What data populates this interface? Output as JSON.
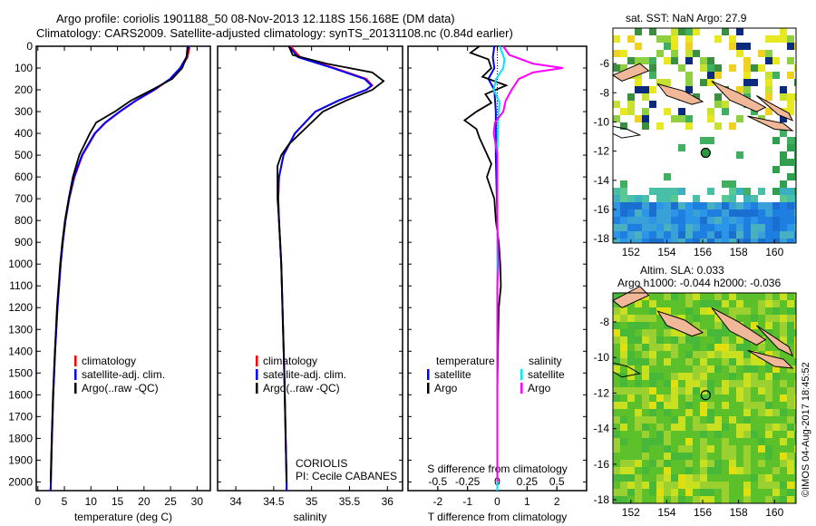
{
  "title_line1": "Argo profile: coriolis 1901188_50 08-Nov-2013 12.118S 156.168E (DM data)",
  "title_line2": "Climatology: CARS2009. Satellite-adjusted climatology: synTS_20131108.nc (0.84d earlier)",
  "colors": {
    "clim": "#ff0000",
    "sat": "#0000ff",
    "argo": "#000000",
    "sat_s": "#00e5ff",
    "argo_s": "#ff00ff"
  },
  "chart_data": [
    {
      "type": "line",
      "name": "temperature",
      "xlabel": "temperature (deg C)",
      "ylabel": "depth",
      "xlim": [
        -0.3,
        32.5
      ],
      "ylim": [
        2040,
        0
      ],
      "xticks": [
        0,
        5,
        10,
        15,
        20,
        25,
        30
      ],
      "yticks": [
        0,
        100,
        200,
        300,
        400,
        500,
        600,
        700,
        800,
        900,
        1000,
        1100,
        1200,
        1300,
        1400,
        1500,
        1600,
        1700,
        1800,
        1900,
        2000
      ],
      "legend": [
        "climatology",
        "satellite-adj. clim.",
        "Argo(..raw -QC)"
      ],
      "series": [
        {
          "name": "climatology",
          "color": "clim",
          "points": [
            [
              0,
              28.6
            ],
            [
              50,
              28.2
            ],
            [
              100,
              27.0
            ],
            [
              150,
              25.0
            ],
            [
              200,
              22.0
            ],
            [
              250,
              18.5
            ],
            [
              300,
              15.5
            ],
            [
              350,
              12.8
            ],
            [
              400,
              10.8
            ],
            [
              500,
              8.4
            ],
            [
              600,
              6.9
            ],
            [
              700,
              5.9
            ],
            [
              800,
              5.2
            ],
            [
              900,
              4.7
            ],
            [
              1000,
              4.3
            ],
            [
              1200,
              3.7
            ],
            [
              1400,
              3.25
            ],
            [
              1600,
              2.9
            ],
            [
              1800,
              2.65
            ],
            [
              2000,
              2.45
            ],
            [
              2040,
              2.4
            ]
          ]
        },
        {
          "name": "satellite-adj. clim.",
          "color": "sat",
          "points": [
            [
              0,
              28.4
            ],
            [
              50,
              28.0
            ],
            [
              100,
              26.8
            ],
            [
              150,
              24.9
            ],
            [
              200,
              21.9
            ],
            [
              250,
              18.4
            ],
            [
              300,
              15.4
            ],
            [
              350,
              12.7
            ],
            [
              400,
              10.7
            ],
            [
              500,
              8.3
            ],
            [
              600,
              6.8
            ],
            [
              700,
              5.9
            ],
            [
              800,
              5.2
            ],
            [
              900,
              4.7
            ],
            [
              1000,
              4.3
            ],
            [
              1200,
              3.7
            ],
            [
              1400,
              3.25
            ],
            [
              1600,
              2.9
            ],
            [
              1800,
              2.65
            ],
            [
              2000,
              2.45
            ],
            [
              2040,
              2.4
            ]
          ]
        },
        {
          "name": "Argo(..raw -QC)",
          "color": "argo",
          "points": [
            [
              0,
              28.2
            ],
            [
              50,
              28.0
            ],
            [
              100,
              27.2
            ],
            [
              150,
              25.3
            ],
            [
              200,
              21.5
            ],
            [
              250,
              17.5
            ],
            [
              300,
              14.5
            ],
            [
              350,
              11.0
            ],
            [
              400,
              9.8
            ],
            [
              500,
              7.8
            ],
            [
              600,
              6.6
            ],
            [
              700,
              5.8
            ],
            [
              800,
              5.1
            ],
            [
              900,
              4.6
            ],
            [
              1000,
              4.2
            ],
            [
              1200,
              3.6
            ],
            [
              1400,
              3.2
            ],
            [
              1600,
              2.85
            ],
            [
              1800,
              2.6
            ],
            [
              2000,
              2.4
            ]
          ]
        }
      ]
    },
    {
      "type": "line",
      "name": "salinity",
      "xlabel": "salinity",
      "ylabel": "depth",
      "xlim": [
        33.76,
        36.2
      ],
      "ylim": [
        2040,
        0
      ],
      "xticks": [
        34,
        34.5,
        35,
        35.5,
        36
      ],
      "legend": [
        "climatology",
        "satellite-adj. clim.",
        "Argo(..raw -QC)"
      ],
      "annotation": [
        "CORIOLIS",
        "PI: Cecile CABANES"
      ],
      "series": [
        {
          "name": "climatology",
          "color": "clim",
          "points": [
            [
              0,
              34.72
            ],
            [
              50,
              34.85
            ],
            [
              100,
              35.3
            ],
            [
              150,
              35.72
            ],
            [
              180,
              35.8
            ],
            [
              200,
              35.72
            ],
            [
              250,
              35.35
            ],
            [
              300,
              35.05
            ],
            [
              400,
              34.78
            ],
            [
              500,
              34.63
            ],
            [
              600,
              34.57
            ],
            [
              700,
              34.56
            ],
            [
              800,
              34.57
            ],
            [
              1000,
              34.6
            ],
            [
              1500,
              34.64
            ],
            [
              2000,
              34.67
            ],
            [
              2040,
              34.67
            ]
          ]
        },
        {
          "name": "satellite-adj. clim.",
          "color": "sat",
          "points": [
            [
              0,
              34.7
            ],
            [
              50,
              34.82
            ],
            [
              100,
              35.28
            ],
            [
              150,
              35.7
            ],
            [
              180,
              35.79
            ],
            [
              200,
              35.72
            ],
            [
              250,
              35.35
            ],
            [
              300,
              35.05
            ],
            [
              400,
              34.78
            ],
            [
              500,
              34.63
            ],
            [
              600,
              34.57
            ],
            [
              700,
              34.56
            ],
            [
              800,
              34.57
            ],
            [
              1000,
              34.6
            ],
            [
              1500,
              34.64
            ],
            [
              2000,
              34.67
            ],
            [
              2040,
              34.67
            ]
          ]
        },
        {
          "name": "Argo(..raw -QC)",
          "color": "argo",
          "points": [
            [
              0,
              34.7
            ],
            [
              40,
              34.75
            ],
            [
              80,
              35.2
            ],
            [
              120,
              35.8
            ],
            [
              160,
              35.95
            ],
            [
              200,
              35.8
            ],
            [
              250,
              35.45
            ],
            [
              300,
              35.15
            ],
            [
              400,
              34.85
            ],
            [
              450,
              34.7
            ],
            [
              500,
              34.6
            ],
            [
              550,
              34.55
            ],
            [
              600,
              34.55
            ],
            [
              700,
              34.55
            ],
            [
              800,
              34.57
            ],
            [
              1000,
              34.6
            ],
            [
              1500,
              34.64
            ],
            [
              2000,
              34.67
            ]
          ]
        }
      ]
    },
    {
      "type": "line",
      "name": "differences",
      "xlabel": "T difference from climatology",
      "x2label": "S difference from climatology",
      "xlim": [
        -3,
        3
      ],
      "ylim": [
        2040,
        0
      ],
      "xticks": [
        -2,
        -1,
        0,
        1,
        2
      ],
      "x2ticks": [
        -0.5,
        -0.25,
        0,
        0.25,
        0.5
      ],
      "x2lim": [
        -0.75,
        0.75
      ],
      "legend_t": [
        "temperature",
        "satellite",
        "Argo"
      ],
      "legend_s": [
        "salinity",
        "satellite",
        "Argo"
      ],
      "series": [
        {
          "name": "T satellite",
          "axis": "t",
          "color": "sat",
          "points": [
            [
              0,
              -0.1
            ],
            [
              50,
              -0.15
            ],
            [
              100,
              -0.1
            ],
            [
              150,
              -0.3
            ],
            [
              200,
              -0.1
            ],
            [
              300,
              -0.05
            ],
            [
              500,
              -0.05
            ],
            [
              800,
              0
            ],
            [
              1200,
              0
            ],
            [
              1600,
              0
            ],
            [
              2000,
              0
            ]
          ]
        },
        {
          "name": "T Argo",
          "axis": "t",
          "color": "argo",
          "points": [
            [
              0,
              -0.6
            ],
            [
              30,
              -0.9
            ],
            [
              60,
              -0.3
            ],
            [
              100,
              -0.2
            ],
            [
              140,
              -0.5
            ],
            [
              180,
              0.3
            ],
            [
              220,
              -0.4
            ],
            [
              260,
              -0.2
            ],
            [
              300,
              -0.7
            ],
            [
              340,
              -1.1
            ],
            [
              380,
              -0.7
            ],
            [
              420,
              -0.6
            ],
            [
              480,
              -0.4
            ],
            [
              540,
              -0.2
            ],
            [
              600,
              -0.35
            ],
            [
              700,
              -0.1
            ],
            [
              800,
              -0.05
            ],
            [
              900,
              0.05
            ],
            [
              1000,
              0.1
            ],
            [
              1100,
              0.12
            ],
            [
              1200,
              0.05
            ],
            [
              1400,
              0.02
            ],
            [
              1600,
              0
            ],
            [
              2000,
              0
            ]
          ]
        },
        {
          "name": "S satellite",
          "axis": "s",
          "color": "sat_s",
          "points": [
            [
              0,
              0.02
            ],
            [
              60,
              0.06
            ],
            [
              100,
              0.05
            ],
            [
              150,
              -0.01
            ],
            [
              200,
              -0.03
            ],
            [
              260,
              0.02
            ],
            [
              300,
              0.01
            ],
            [
              500,
              0.0
            ],
            [
              1000,
              0.0
            ],
            [
              1500,
              0.0
            ],
            [
              2000,
              0
            ],
            [
              2040,
              0
            ]
          ]
        },
        {
          "name": "S Argo",
          "axis": "s",
          "color": "argo_s",
          "points": [
            [
              0,
              0.05
            ],
            [
              40,
              0.1
            ],
            [
              80,
              0.3
            ],
            [
              100,
              0.55
            ],
            [
              120,
              0.3
            ],
            [
              150,
              0.18
            ],
            [
              200,
              0.12
            ],
            [
              250,
              0.07
            ],
            [
              300,
              0.05
            ],
            [
              350,
              -0.02
            ],
            [
              400,
              -0.03
            ],
            [
              500,
              0.0
            ],
            [
              600,
              0.0
            ],
            [
              800,
              0.0
            ],
            [
              1000,
              0.01
            ],
            [
              1100,
              0.0
            ],
            [
              1500,
              0.0
            ],
            [
              2000,
              0
            ]
          ]
        }
      ]
    }
  ],
  "map_top": {
    "title": "sat. SST: NaN Argo: 27.9",
    "xticks": [
      152,
      154,
      156,
      158,
      160
    ],
    "yticks": [
      -6,
      -8,
      -10,
      -12,
      -14,
      -16,
      -18
    ],
    "lon": 156.168,
    "lat": -12.118
  },
  "map_bottom": {
    "title1": "Altim. SLA: 0.033",
    "title2": "Argo h1000: -0.044 h2000: -0.036",
    "xticks": [
      152,
      154,
      156,
      158,
      160
    ],
    "yticks": [
      -8,
      -10,
      -12,
      -14,
      -16,
      -18
    ],
    "lon": 156.168,
    "lat": -12.118
  },
  "credit": "©IMOS 04-Aug-2017 18:45:52"
}
